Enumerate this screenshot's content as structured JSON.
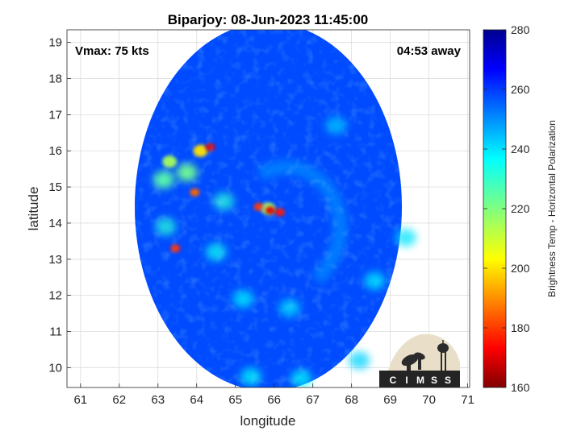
{
  "chart_data": {
    "type": "heatmap",
    "title": "Biparjoy: 08-Jun-2023 11:45:00",
    "xlabel": "longitude",
    "ylabel": "latitude",
    "xlim": [
      60.65,
      71.05
    ],
    "ylim": [
      9.45,
      19.35
    ],
    "xticks": [
      61,
      62,
      63,
      64,
      65,
      66,
      67,
      68,
      69,
      70,
      71
    ],
    "yticks": [
      10,
      11,
      12,
      13,
      14,
      15,
      16,
      17,
      18,
      19
    ],
    "grid": true,
    "annotations": {
      "vmax": "Vmax: 75 kts",
      "time_offset": "04:53 away"
    },
    "colorbar": {
      "label": "Brightness Temp - Horizontal Polarization",
      "range": [
        160,
        280
      ],
      "ticks": [
        160,
        180,
        200,
        220,
        240,
        260,
        280
      ],
      "colormap": "jet"
    },
    "swath": {
      "center_lon": 65.85,
      "center_lat": 14.45,
      "radius_deg_lon": 3.45,
      "radius_deg_lat": 5.1,
      "background_tb": 258
    },
    "features": [
      {
        "name": "eyewall",
        "lon": 65.9,
        "lat": 14.35,
        "tb": 170
      },
      {
        "name": "eyewall",
        "lon": 65.6,
        "lat": 14.45,
        "tb": 180
      },
      {
        "name": "eyewall",
        "lon": 66.15,
        "lat": 14.3,
        "tb": 176
      },
      {
        "name": "inner-ring",
        "lon": 65.85,
        "lat": 14.4,
        "tb": 215
      },
      {
        "name": "rainband",
        "lon": 64.35,
        "lat": 16.1,
        "tb": 170
      },
      {
        "name": "rainband",
        "lon": 64.1,
        "lat": 16.0,
        "tb": 200
      },
      {
        "name": "rainband",
        "lon": 63.95,
        "lat": 14.85,
        "tb": 185
      },
      {
        "name": "rainband",
        "lon": 63.45,
        "lat": 13.3,
        "tb": 178
      },
      {
        "name": "rainband",
        "lon": 63.3,
        "lat": 15.7,
        "tb": 215
      },
      {
        "name": "rainband",
        "lon": 63.15,
        "lat": 15.2,
        "tb": 225
      },
      {
        "name": "rainband",
        "lon": 63.75,
        "lat": 15.4,
        "tb": 222
      },
      {
        "name": "rainband",
        "lon": 63.2,
        "lat": 13.9,
        "tb": 232
      },
      {
        "name": "rainband",
        "lon": 64.7,
        "lat": 14.6,
        "tb": 232
      },
      {
        "name": "rainband",
        "lon": 64.5,
        "lat": 13.2,
        "tb": 235
      },
      {
        "name": "rainband",
        "lon": 65.2,
        "lat": 11.9,
        "tb": 238
      },
      {
        "name": "rainband",
        "lon": 66.4,
        "lat": 11.65,
        "tb": 240
      },
      {
        "name": "rainband",
        "lon": 68.6,
        "lat": 12.4,
        "tb": 238
      },
      {
        "name": "rainband",
        "lon": 69.4,
        "lat": 13.6,
        "tb": 240
      },
      {
        "name": "rainband",
        "lon": 67.6,
        "lat": 16.7,
        "tb": 243
      },
      {
        "name": "rainband",
        "lon": 65.4,
        "lat": 9.75,
        "tb": 236
      },
      {
        "name": "rainband",
        "lon": 66.7,
        "lat": 9.7,
        "tb": 236
      },
      {
        "name": "rainband",
        "lon": 68.2,
        "lat": 10.2,
        "tb": 242
      }
    ]
  },
  "logo": {
    "text": "CIMSS",
    "letters": [
      "C",
      "I",
      "M",
      "S",
      "S"
    ]
  }
}
